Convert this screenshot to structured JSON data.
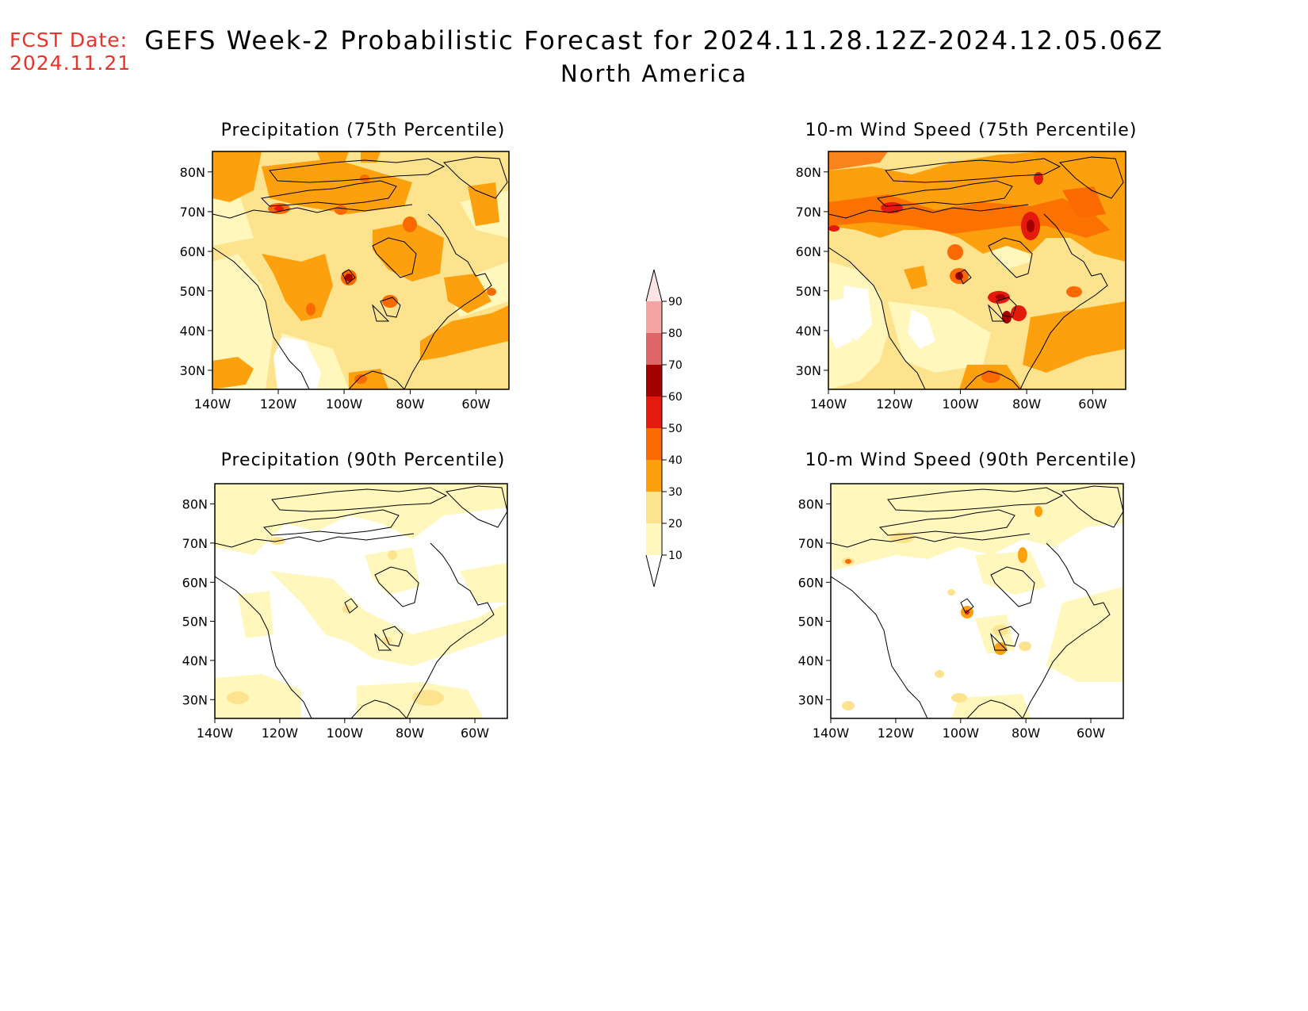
{
  "header": {
    "fcst_label": "FCST Date:",
    "fcst_date": "2024.11.21",
    "title": "GEFS Week-2 Probabilistic Forecast for 2024.11.28.12Z-2024.12.05.06Z",
    "subtitle": "North America"
  },
  "axes": {
    "lat_labels": [
      "80N",
      "70N",
      "60N",
      "50N",
      "40N",
      "30N"
    ],
    "lon_labels": [
      "140W",
      "120W",
      "100W",
      "80W",
      "60W"
    ]
  },
  "panels": [
    {
      "id": "precip75",
      "title": "Precipitation (75th Percentile)",
      "variable": "Precipitation",
      "percentile": "75th"
    },
    {
      "id": "wind75",
      "title": "10-m Wind Speed (75th Percentile)",
      "variable": "10-m Wind Speed",
      "percentile": "75th"
    },
    {
      "id": "precip90",
      "title": "Precipitation (90th Percentile)",
      "variable": "Precipitation",
      "percentile": "90th"
    },
    {
      "id": "wind90",
      "title": "10-m Wind Speed (90th Percentile)",
      "variable": "10-m Wind Speed",
      "percentile": "90th"
    }
  ],
  "colorbar": {
    "levels": [
      "10",
      "20",
      "30",
      "40",
      "50",
      "60",
      "70",
      "80",
      "90"
    ],
    "colors": [
      "#fff7bc",
      "#fde38d",
      "#fca10d",
      "#fb6a00",
      "#e31a0c",
      "#a50000",
      "#dd6666",
      "#f5a3a3",
      "#fde4e4"
    ]
  },
  "colors": {
    "title_red": "#e8342a",
    "level_10_20": "#fff7bc",
    "level_20_30": "#fde38d",
    "level_30_40": "#fca10d",
    "level_40_50": "#fb6a00",
    "level_50_60": "#e31a0c",
    "level_60_70": "#a50000"
  }
}
